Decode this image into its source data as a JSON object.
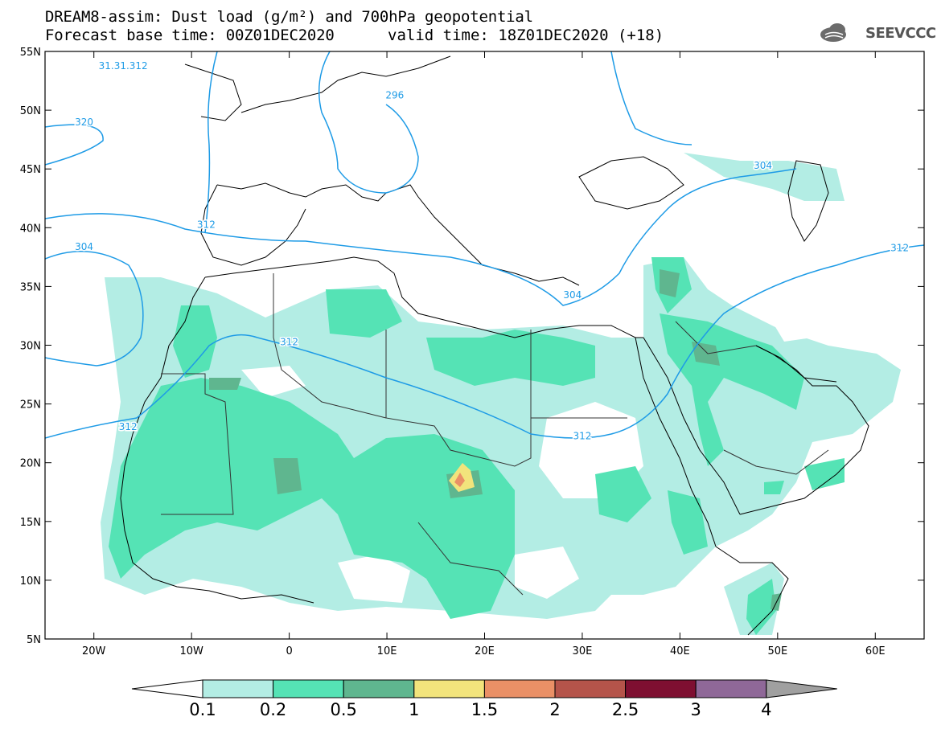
{
  "header": {
    "title_line1": "DREAM8-assim: Dust load (g/m²) and 700hPa geopotential",
    "title_line2": "Forecast base time: 00Z01DEC2020",
    "valid_time": "valid time: 18Z01DEC2020 (+18)",
    "logo_text": "SEEVCCC",
    "logo_icon": "cloud-logo-icon"
  },
  "map": {
    "lon_range": [
      -25,
      65
    ],
    "lat_range": [
      5,
      55
    ],
    "lat_labels": [
      "55N",
      "50N",
      "45N",
      "40N",
      "35N",
      "30N",
      "25N",
      "20N",
      "15N",
      "10N",
      "5N"
    ],
    "lat_values": [
      55,
      50,
      45,
      40,
      35,
      30,
      25,
      20,
      15,
      10,
      5
    ],
    "lon_labels": [
      "20W",
      "10W",
      "0",
      "10E",
      "20E",
      "30E",
      "40E",
      "50E",
      "60E"
    ],
    "lon_values": [
      -20,
      -10,
      0,
      10,
      20,
      30,
      40,
      50,
      60
    ],
    "contour_labels": [
      {
        "text": "31.31.312",
        "lon": -17,
        "lat": 53.5
      },
      {
        "text": "320",
        "lon": -21,
        "lat": 48.7
      },
      {
        "text": "296",
        "lon": 10.8,
        "lat": 51
      },
      {
        "text": "312",
        "lon": -8.5,
        "lat": 40
      },
      {
        "text": "304",
        "lon": -21,
        "lat": 38.1
      },
      {
        "text": "312",
        "lon": 0,
        "lat": 30
      },
      {
        "text": "304",
        "lon": 29,
        "lat": 34
      },
      {
        "text": "312",
        "lon": 30,
        "lat": 22
      },
      {
        "text": "304",
        "lon": 48.5,
        "lat": 45
      },
      {
        "text": "312",
        "lon": 62.5,
        "lat": 38
      },
      {
        "text": "312",
        "lon": -16.5,
        "lat": 22.8
      }
    ]
  },
  "legend": {
    "labels": [
      "0.1",
      "0.2",
      "0.5",
      "1",
      "1.5",
      "2",
      "2.5",
      "3",
      "4"
    ],
    "colors": [
      "#b3ede4",
      "#55e3b5",
      "#5fb68f",
      "#f2e47c",
      "#ea9066",
      "#b5544a",
      "#7e0f31",
      "#8f6898"
    ]
  }
}
